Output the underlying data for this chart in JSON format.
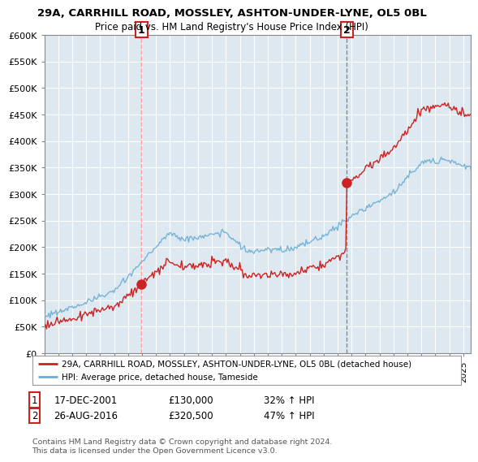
{
  "title_line1": "29A, CARRHILL ROAD, MOSSLEY, ASHTON-UNDER-LYNE, OL5 0BL",
  "title_line2": "Price paid vs. HM Land Registry's House Price Index (HPI)",
  "xlim_start": 1995.0,
  "xlim_end": 2025.5,
  "ylim": [
    0,
    600000
  ],
  "yticks": [
    0,
    50000,
    100000,
    150000,
    200000,
    250000,
    300000,
    350000,
    400000,
    450000,
    500000,
    550000,
    600000
  ],
  "ytick_labels": [
    "£0",
    "£50K",
    "£100K",
    "£150K",
    "£200K",
    "£250K",
    "£300K",
    "£350K",
    "£400K",
    "£450K",
    "£500K",
    "£550K",
    "£600K"
  ],
  "sale1_x": 2001.96,
  "sale1_y": 130000,
  "sale2_x": 2016.65,
  "sale2_y": 320500,
  "hpi_color": "#6baed6",
  "price_color": "#cc2222",
  "sale1_vline_color": "#ff9999",
  "sale2_vline_color": "#888888",
  "chart_bg": "#dde8f0",
  "legend_label_price": "29A, CARRHILL ROAD, MOSSLEY, ASHTON-UNDER-LYNE, OL5 0BL (detached house)",
  "legend_label_hpi": "HPI: Average price, detached house, Tameside",
  "footer": "Contains HM Land Registry data © Crown copyright and database right 2024.\nThis data is licensed under the Open Government Licence v3.0.",
  "annotation1_date": "17-DEC-2001",
  "annotation1_price": "£130,000",
  "annotation1_hpi": "32% ↑ HPI",
  "annotation2_date": "26-AUG-2016",
  "annotation2_price": "£320,500",
  "annotation2_hpi": "47% ↑ HPI",
  "bg_color": "#ffffff",
  "grid_color": "#aaaacc",
  "ann_box_color": "#cc2222"
}
